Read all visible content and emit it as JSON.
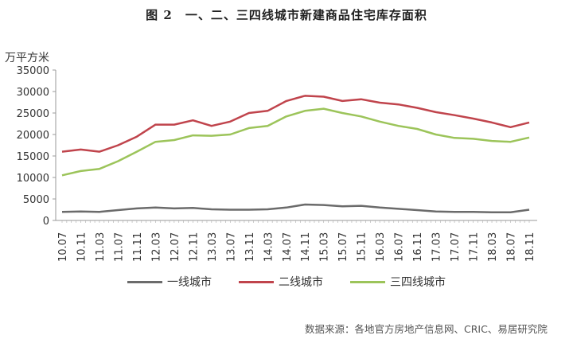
{
  "chart_data": {
    "type": "line",
    "title": "图 2　一、二、三四线城市新建商品住宅库存面积",
    "ylabel": "万平方米",
    "xlabel": "",
    "ylim": [
      0,
      35000
    ],
    "yticks": [
      0,
      5000,
      10000,
      15000,
      20000,
      25000,
      30000,
      35000
    ],
    "x": [
      "10.07",
      "10.11",
      "11.03",
      "11.07",
      "11.11",
      "12.03",
      "12.07",
      "12.11",
      "13.03",
      "13.07",
      "13.11",
      "14.03",
      "14.07",
      "14.11",
      "15.03",
      "15.07",
      "15.11",
      "16.03",
      "16.07",
      "16.11",
      "17.03",
      "17.07",
      "17.11",
      "18.03",
      "18.07",
      "18.11"
    ],
    "series": [
      {
        "name": "一线城市",
        "color": "#6b6b6b",
        "values": [
          2000,
          2100,
          2000,
          2400,
          2800,
          3000,
          2800,
          2900,
          2600,
          2500,
          2500,
          2600,
          3000,
          3700,
          3600,
          3300,
          3400,
          3000,
          2700,
          2400,
          2100,
          2000,
          2000,
          1900,
          1900,
          2500
        ]
      },
      {
        "name": "二线城市",
        "color": "#c0444c",
        "values": [
          16000,
          16500,
          16000,
          17500,
          19500,
          22300,
          22300,
          23300,
          22000,
          23000,
          25000,
          25500,
          27800,
          29000,
          28800,
          27800,
          28200,
          27400,
          27000,
          26200,
          25200,
          24500,
          23700,
          22800,
          21700,
          22800
        ]
      },
      {
        "name": "三四线城市",
        "color": "#9cc45a",
        "values": [
          10500,
          11500,
          12000,
          13800,
          16000,
          18300,
          18700,
          19800,
          19700,
          20000,
          21500,
          22000,
          24200,
          25500,
          26000,
          25000,
          24200,
          23000,
          22000,
          21300,
          20000,
          19200,
          19000,
          18500,
          18300,
          19300
        ]
      }
    ],
    "grid": false,
    "legend_position": "bottom"
  },
  "source": "数据来源：各地官方房地产信息网、CRIC、易居研究院"
}
